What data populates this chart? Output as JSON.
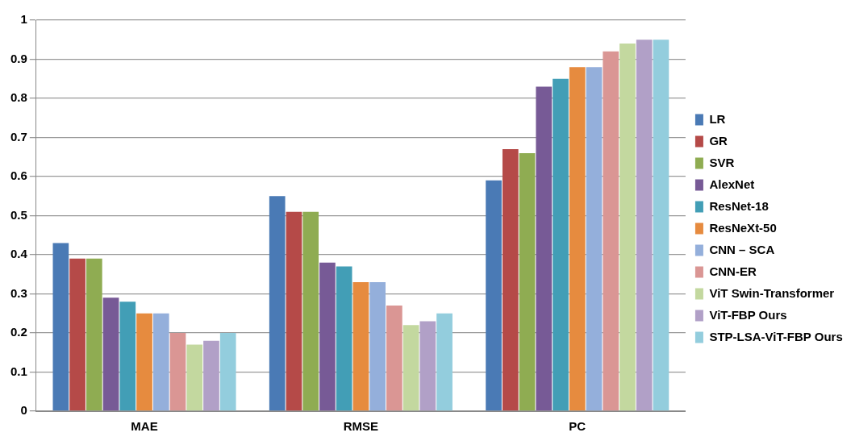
{
  "chart_data": {
    "type": "bar",
    "categories": [
      "MAE",
      "RMSE",
      "PC"
    ],
    "series": [
      {
        "name": "LR",
        "color": "#4a7ab5",
        "values": [
          0.43,
          0.55,
          0.59
        ]
      },
      {
        "name": "GR",
        "color": "#b54a48",
        "values": [
          0.39,
          0.51,
          0.67
        ]
      },
      {
        "name": "SVR",
        "color": "#8fac52",
        "values": [
          0.39,
          0.51,
          0.66
        ]
      },
      {
        "name": "AlexNet",
        "color": "#775a96",
        "values": [
          0.29,
          0.38,
          0.83
        ]
      },
      {
        "name": "ResNet-18",
        "color": "#429eb6",
        "values": [
          0.28,
          0.37,
          0.85
        ]
      },
      {
        "name": "ResNeXt-50",
        "color": "#e68b3f",
        "values": [
          0.25,
          0.33,
          0.88
        ]
      },
      {
        "name": "CNN – SCA",
        "color": "#94afdb",
        "values": [
          0.25,
          0.33,
          0.88
        ]
      },
      {
        "name": "CNN-ER",
        "color": "#da9694",
        "values": [
          0.2,
          0.27,
          0.92
        ]
      },
      {
        "name": "ViT Swin-Transformer",
        "color": "#c3d89f",
        "values": [
          0.17,
          0.22,
          0.94
        ]
      },
      {
        "name": "ViT-FBP Ours",
        "color": "#b1a0c7",
        "values": [
          0.18,
          0.23,
          0.95
        ]
      },
      {
        "name": "STP-LSA-ViT-FBP Ours",
        "color": "#93cddd",
        "values": [
          0.2,
          0.25,
          0.95
        ]
      }
    ],
    "ylim": [
      0,
      1
    ],
    "yticks": [
      0,
      0.1,
      0.2,
      0.3,
      0.4,
      0.5,
      0.6,
      0.7,
      0.8,
      0.9,
      1
    ],
    "grid": "y",
    "legend": "right"
  }
}
